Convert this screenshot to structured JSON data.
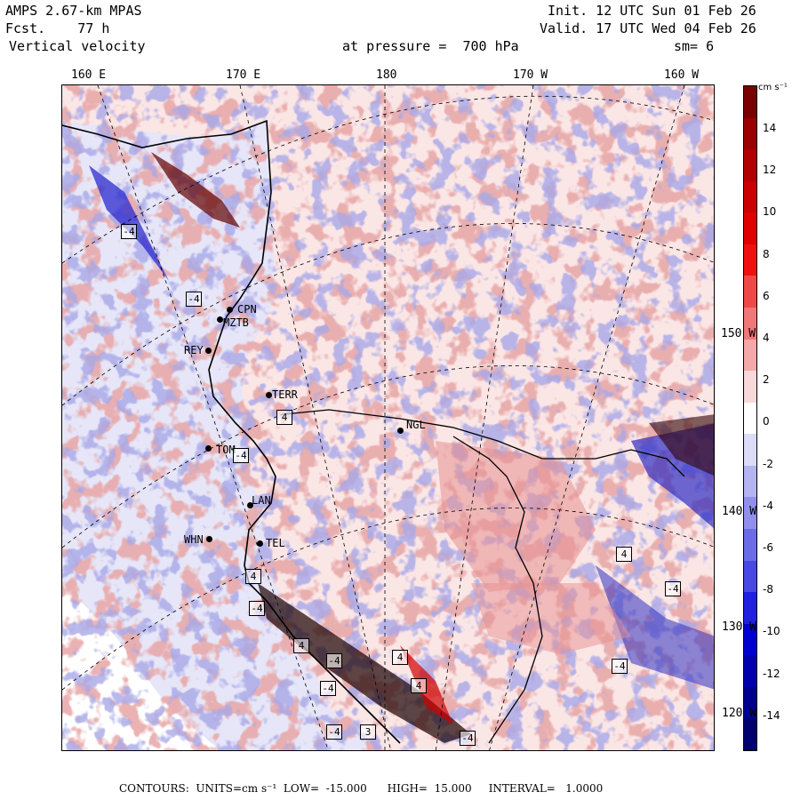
{
  "header": {
    "model": "AMPS 2.67-km MPAS",
    "fcst_label": "Fcst.",
    "fcst_value": "77 h",
    "field": "Vertical velocity",
    "init": "Init. 12 UTC Sun 01 Feb 26",
    "valid": "Valid. 17 UTC Wed 04 Feb 26",
    "level": "at pressure =  700 hPa",
    "smoothing": "sm= 6"
  },
  "lon_labels": [
    "160 E",
    "170 E",
    "180",
    "170 W",
    "160 W"
  ],
  "lat_labels": [
    "150 W",
    "140 W",
    "130 W",
    "120 W"
  ],
  "colorbar": {
    "units": "cm s⁻¹",
    "labels": [
      "14",
      "12",
      "10",
      "8",
      "6",
      "4",
      "2",
      "0",
      "-2",
      "-4",
      "-6",
      "-8",
      "-10",
      "-12",
      "-14"
    ],
    "colors": [
      "#7a0000",
      "#9c0000",
      "#b30000",
      "#cc0000",
      "#e00000",
      "#f01010",
      "#f04848",
      "#f07878",
      "#f4a8a8",
      "#f8d8d8",
      "#ffffff",
      "#dcdcf8",
      "#b4b4f0",
      "#9090ec",
      "#6c6ce8",
      "#4848e4",
      "#2020e0",
      "#0000d0",
      "#0000b0",
      "#000090",
      "#000070"
    ]
  },
  "stations": [
    {
      "name": "CPN"
    },
    {
      "name": "MZTB"
    },
    {
      "name": "REY"
    },
    {
      "name": "TERR"
    },
    {
      "name": "TOM"
    },
    {
      "name": "LAN"
    },
    {
      "name": "WHN"
    },
    {
      "name": "TEL"
    },
    {
      "name": "NGL"
    }
  ],
  "hl_marks": [
    "-4",
    "-4",
    "4",
    "-4",
    "4",
    "-4",
    "4",
    "-4",
    "4",
    "4",
    "-4",
    "-4",
    "4",
    "-4",
    "-4",
    "-4",
    "3"
  ],
  "footer": {
    "contours": "CONTOURS:  UNITS=cm s⁻¹",
    "low": "LOW=  -15.000",
    "high": "HIGH=  15.000",
    "interval": "INTERVAL=   1.0000"
  }
}
